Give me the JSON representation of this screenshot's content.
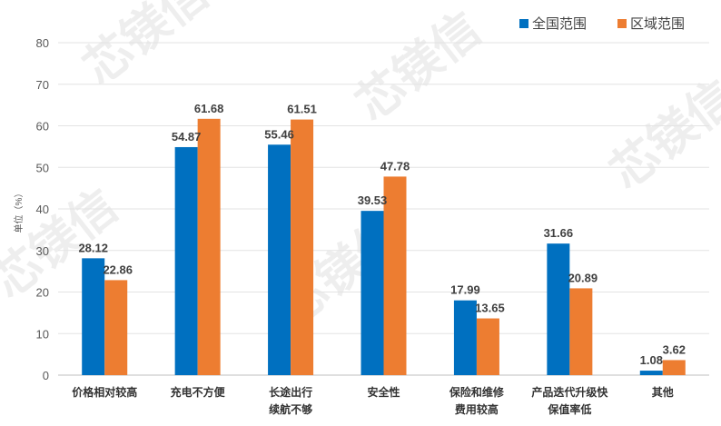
{
  "chart_data": {
    "type": "bar",
    "title": "",
    "ylabel": "单位（%）",
    "xlabel": "",
    "ylim": [
      0,
      80
    ],
    "yticks": [
      0,
      10,
      20,
      30,
      40,
      50,
      60,
      70,
      80
    ],
    "grid": true,
    "legend_position": "top-right",
    "categories": [
      [
        "价格相对较高"
      ],
      [
        "充电不方便"
      ],
      [
        "长途出行",
        "续航不够"
      ],
      [
        "安全性"
      ],
      [
        "保险和维修",
        "费用较高"
      ],
      [
        "产品迭代升级快",
        "保值率低"
      ],
      [
        "其他"
      ]
    ],
    "series": [
      {
        "name": "全国范围",
        "color": "#0070C0",
        "values": [
          28.12,
          54.87,
          55.46,
          39.53,
          17.99,
          31.66,
          1.08
        ]
      },
      {
        "name": "区域范围",
        "color": "#ED7D31",
        "values": [
          22.86,
          61.68,
          61.51,
          47.78,
          13.65,
          20.89,
          3.62
        ]
      }
    ]
  },
  "watermark": {
    "text": "芯镁信"
  }
}
